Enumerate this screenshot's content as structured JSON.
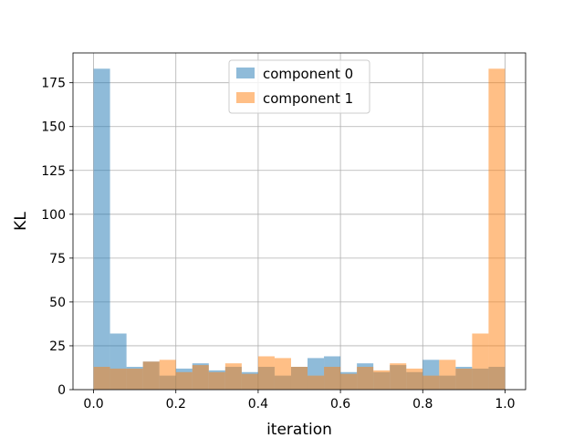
{
  "chart_data": {
    "type": "bar",
    "subtype": "overlaid-histogram",
    "title": "",
    "xlabel": "iteration",
    "ylabel": "KL",
    "xlim": [
      -0.05,
      1.05
    ],
    "ylim": [
      0,
      192
    ],
    "x_ticks": [
      0.0,
      0.2,
      0.4,
      0.6,
      0.8,
      1.0
    ],
    "x_tick_labels": [
      "0.0",
      "0.2",
      "0.4",
      "0.6",
      "0.8",
      "1.0"
    ],
    "y_ticks": [
      0,
      25,
      50,
      75,
      100,
      125,
      150,
      175
    ],
    "y_tick_labels": [
      "0",
      "25",
      "50",
      "75",
      "100",
      "125",
      "150",
      "175"
    ],
    "grid": true,
    "legend_position": "top-center",
    "bin_edges": [
      0.0,
      0.04,
      0.08,
      0.12,
      0.16,
      0.2,
      0.24,
      0.28,
      0.32,
      0.36,
      0.4,
      0.44,
      0.48,
      0.52,
      0.56,
      0.6,
      0.64,
      0.68,
      0.72,
      0.76,
      0.8,
      0.84,
      0.88,
      0.92,
      0.96,
      1.0
    ],
    "series": [
      {
        "name": "component 0",
        "color": "#1f77b4",
        "alpha": 0.5,
        "values": [
          183,
          32,
          13,
          16,
          8,
          12,
          15,
          11,
          13,
          10,
          13,
          8,
          13,
          18,
          19,
          10,
          15,
          10,
          14,
          10,
          17,
          8,
          13,
          12,
          13
        ]
      },
      {
        "name": "component 1",
        "color": "#ff7f0e",
        "alpha": 0.5,
        "values": [
          13,
          12,
          12,
          16,
          17,
          10,
          14,
          10,
          15,
          9,
          19,
          18,
          13,
          8,
          13,
          9,
          13,
          11,
          15,
          12,
          8,
          17,
          12,
          32,
          183
        ]
      }
    ]
  }
}
